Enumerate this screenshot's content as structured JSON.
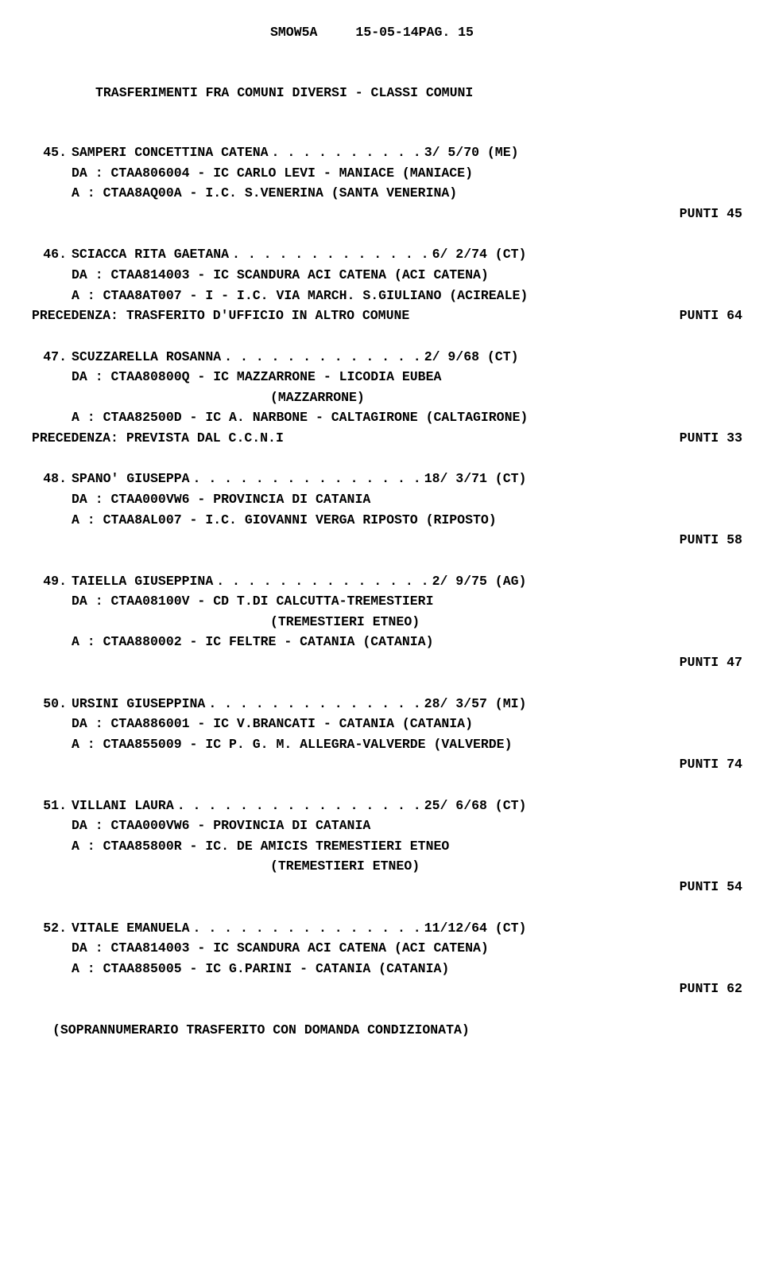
{
  "header": {
    "code": "SMOW5A",
    "date_page": "15-05-14PAG. 15"
  },
  "section_title": "TRASFERIMENTI FRA COMUNI DIVERSI - CLASSI COMUNI",
  "entries": [
    {
      "num": "45.",
      "name": "SAMPERI CONCETTINA CATENA",
      "dots": ". . . . . . . . . .",
      "date": "3/ 5/70 (ME)",
      "da": "DA : CTAA806004 - IC CARLO LEVI - MANIACE (MANIACE)",
      "a": "A : CTAA8AQ00A - I.C. S.VENERINA (SANTA VENERINA)",
      "punti": "PUNTI  45"
    },
    {
      "num": "46.",
      "name": "SCIACCA RITA GAETANA",
      "dots": ". . . . . . . . . . . . .",
      "date": "6/ 2/74 (CT)",
      "da": "DA : CTAA814003 - IC SCANDURA ACI CATENA (ACI CATENA)",
      "a": "A : CTAA8AT007 - I - I.C. VIA MARCH. S.GIULIANO (ACIREALE)",
      "plain_left": "PRECEDENZA: TRASFERITO D'UFFICIO IN ALTRO COMUNE",
      "plain_right": "PUNTI  64"
    },
    {
      "num": "47.",
      "name": "SCUZZARELLA ROSANNA",
      "dots": ". . . . . . . . . . . . .",
      "date": "2/ 9/68 (CT)",
      "da": "DA : CTAA80800Q - IC MAZZARRONE - LICODIA EUBEA",
      "paren": "(MAZZARRONE)",
      "a": "A : CTAA82500D - IC A. NARBONE - CALTAGIRONE (CALTAGIRONE)",
      "plain_left": "PRECEDENZA: PREVISTA DAL C.C.N.I",
      "plain_right": "PUNTI  33"
    },
    {
      "num": "48.",
      "name": "SPANO' GIUSEPPA",
      "dots": ". . . . . . . . . . . . . . .",
      "date": "18/ 3/71 (CT)",
      "da": "DA : CTAA000VW6 - PROVINCIA DI CATANIA",
      "a": "A : CTAA8AL007 - I.C. GIOVANNI VERGA RIPOSTO (RIPOSTO)",
      "punti": "PUNTI  58"
    },
    {
      "num": "49.",
      "name": "TAIELLA GIUSEPPINA",
      "dots": ". . . . . . . . . . . . . .",
      "date": "2/ 9/75 (AG)",
      "da": "DA : CTAA08100V - CD T.DI CALCUTTA-TREMESTIERI",
      "paren": "(TREMESTIERI ETNEO)",
      "a": "A : CTAA880002 - IC FELTRE - CATANIA (CATANIA)",
      "punti": "PUNTI  47"
    },
    {
      "num": "50.",
      "name": "URSINI GIUSEPPINA",
      "dots": ". . . . . . . . . . . . . .",
      "date": "28/ 3/57 (MI)",
      "da": "DA : CTAA886001 - IC V.BRANCATI - CATANIA (CATANIA)",
      "a": "A : CTAA855009 - IC P. G. M. ALLEGRA-VALVERDE (VALVERDE)",
      "punti": "PUNTI  74"
    },
    {
      "num": "51.",
      "name": "VILLANI LAURA",
      "dots": ". . . . . . . . . . . . . . . .",
      "date": "25/ 6/68 (CT)",
      "da": "DA : CTAA000VW6 - PROVINCIA DI CATANIA",
      "a": "A : CTAA85800R - IC. DE AMICIS TREMESTIERI ETNEO",
      "paren_after_a": "(TREMESTIERI ETNEO)",
      "punti": "PUNTI  54"
    },
    {
      "num": "52.",
      "name": "VITALE EMANUELA",
      "dots": ". . . . . . . . . . . . . . .",
      "date": "11/12/64 (CT)",
      "da": "DA : CTAA814003 - IC SCANDURA ACI CATENA (ACI CATENA)",
      "a": "A : CTAA885005 - IC G.PARINI - CATANIA (CATANIA)",
      "punti": "PUNTI  62"
    }
  ],
  "footer": "(SOPRANNUMERARIO TRASFERITO CON DOMANDA CONDIZIONATA)"
}
